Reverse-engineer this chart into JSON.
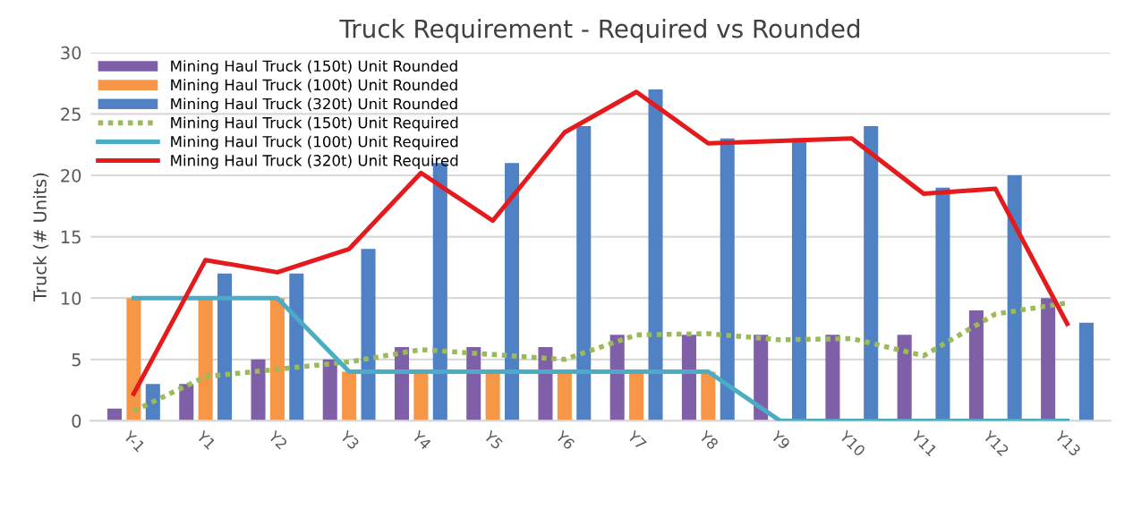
{
  "chart_data": {
    "type": "bar",
    "title": "Truck Requirement - Required vs Rounded",
    "ylabel": "Truck (# Units)",
    "categories": [
      "Y-1",
      "Y1",
      "Y2",
      "Y3",
      "Y4",
      "Y5",
      "Y6",
      "Y7",
      "Y8",
      "Y9",
      "Y10",
      "Y11",
      "Y12",
      "Y13"
    ],
    "series": [
      {
        "name": "Mining Haul Truck (150t) Unit Rounded",
        "color": "#7f5fa8",
        "values": [
          1,
          3,
          5,
          5,
          6,
          6,
          6,
          7,
          7,
          7,
          7,
          7,
          9,
          10
        ]
      },
      {
        "name": "Mining Haul Truck (100t) Unit Rounded",
        "color": "#f79646",
        "values": [
          10,
          10,
          10,
          4,
          4,
          4,
          4,
          4,
          4,
          null,
          null,
          null,
          null,
          null
        ]
      },
      {
        "name": "Mining Haul Truck (320t) Unit Rounded",
        "color": "#4f81c4",
        "values": [
          3,
          12,
          12,
          14,
          21,
          21,
          24,
          27,
          23,
          23,
          24,
          19,
          20,
          8
        ]
      },
      {
        "name": "Mining Haul Truck (150t) Unit Required",
        "type": "line",
        "line_style": "dotted",
        "color": "#9bbb59",
        "values": [
          0.8,
          3.6,
          4.2,
          4.8,
          5.8,
          5.4,
          5.0,
          7.0,
          7.1,
          6.6,
          6.7,
          5.3,
          8.7,
          9.6
        ]
      },
      {
        "name": "Mining Haul Truck (100t) Unit Required",
        "type": "line",
        "line_style": "solid",
        "color": "#4bacc6",
        "values": [
          10,
          10,
          10,
          4,
          4,
          4,
          4,
          4,
          4,
          0,
          0,
          0,
          0,
          0
        ]
      },
      {
        "name": "Mining Haul Truck (320t) Unit Required",
        "type": "line",
        "line_style": "solid",
        "color": "#e41a1c",
        "values": [
          2.2,
          13.1,
          12.1,
          14.0,
          20.2,
          16.3,
          23.5,
          26.8,
          22.6,
          22.8,
          23.0,
          18.5,
          18.9,
          7.9
        ]
      }
    ],
    "ylim": [
      0,
      30
    ],
    "yticks": [
      0,
      5,
      10,
      15,
      20,
      25,
      30
    ],
    "grid": "y",
    "legend": "top left"
  }
}
